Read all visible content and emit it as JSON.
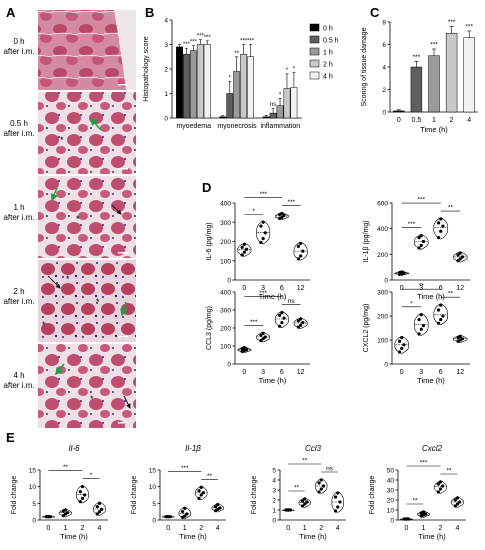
{
  "panels": {
    "A": {
      "letter": "A",
      "rows": [
        {
          "l1": "0 h",
          "l2": "after i.m."
        },
        {
          "l1": "0.5 h",
          "l2": "after i.m."
        },
        {
          "l1": "1 h",
          "l2": "after i.m."
        },
        {
          "l1": "2 h",
          "l2": "after i.m."
        },
        {
          "l1": "4 h",
          "l2": "after i.m."
        }
      ]
    },
    "B": {
      "letter": "B"
    },
    "C": {
      "letter": "C"
    },
    "D": {
      "letter": "D"
    },
    "E": {
      "letter": "E"
    }
  },
  "chart_data": [
    {
      "id": "B",
      "type": "bar",
      "categories": [
        "myoedema",
        "myonecrosis",
        "inflammation"
      ],
      "ylabel": "Histopathology score",
      "ylim": [
        0,
        4
      ],
      "yticks": [
        0,
        1,
        2,
        3,
        4
      ],
      "series": [
        {
          "name": "0 h",
          "color": "#000000",
          "values": [
            2.9,
            0.05,
            0.05
          ]
        },
        {
          "name": "0.5 h",
          "color": "#5f5f5f",
          "values": [
            2.6,
            1.0,
            0.2
          ]
        },
        {
          "name": "1 h",
          "color": "#9a9a9a",
          "values": [
            2.75,
            1.9,
            0.5
          ]
        },
        {
          "name": "2 h",
          "color": "#c8c8c8",
          "values": [
            3.0,
            2.6,
            1.2
          ]
        },
        {
          "name": "4 h",
          "color": "#f2f2f2",
          "values": [
            3.0,
            2.5,
            1.25
          ]
        }
      ],
      "errors": [
        [
          0.1,
          0.05,
          0.05
        ],
        [
          0.25,
          0.5,
          0.2
        ],
        [
          0.2,
          0.6,
          0.3
        ],
        [
          0.2,
          0.4,
          0.6
        ],
        [
          0.15,
          0.5,
          0.6
        ]
      ],
      "sig": [
        [
          "***",
          "***",
          "***",
          "***"
        ],
        [
          "*",
          "**",
          "***",
          "***"
        ],
        [
          "ns",
          "*",
          "*",
          "*"
        ]
      ],
      "legend": [
        "0 h",
        "0.5 h",
        "1 h",
        "2 h",
        "4 h"
      ]
    },
    {
      "id": "C",
      "type": "bar",
      "categories": [
        "0",
        "0.5",
        "1",
        "2",
        "4"
      ],
      "xlabel": "Time (h)",
      "ylabel": "Scoring of tissue damage",
      "ylim": [
        0,
        8
      ],
      "yticks": [
        0,
        2,
        4,
        6,
        8
      ],
      "values": [
        0.1,
        4.0,
        5.0,
        7.0,
        6.6
      ],
      "errors": [
        0.1,
        0.5,
        0.6,
        0.6,
        0.6
      ],
      "colors": [
        "#000000",
        "#5f5f5f",
        "#9a9a9a",
        "#c8c8c8",
        "#f2f2f2"
      ],
      "sig": [
        "",
        "***",
        "***",
        "***",
        "***"
      ]
    },
    {
      "id": "D1",
      "type": "scatter",
      "categories": [
        "0",
        "3",
        "6",
        "12"
      ],
      "xlabel": "Time (h)",
      "ylabel": "IL-6 (pg/mg)",
      "ylim": [
        0,
        400
      ],
      "yticks": [
        0,
        100,
        200,
        300,
        400
      ],
      "points": [
        [
          130,
          145,
          160,
          170,
          185
        ],
        [
          195,
          215,
          245,
          280,
          300
        ],
        [
          320,
          325,
          335,
          340,
          345
        ],
        [
          110,
          125,
          150,
          175,
          190
        ]
      ],
      "brackets": [
        [
          0,
          1,
          "*"
        ],
        [
          0,
          2,
          "***"
        ],
        [
          2,
          3,
          "***"
        ]
      ]
    },
    {
      "id": "D2",
      "type": "scatter",
      "categories": [
        "0",
        "3",
        "6",
        "12"
      ],
      "xlabel": "Time (h)",
      "ylabel": "IL-1β (pg/mg)",
      "ylim": [
        0,
        600
      ],
      "yticks": [
        0,
        200,
        400,
        600
      ],
      "points": [
        [
          45,
          50,
          55,
          58,
          62
        ],
        [
          250,
          270,
          300,
          330,
          345
        ],
        [
          330,
          380,
          420,
          445,
          475
        ],
        [
          150,
          165,
          180,
          195,
          210
        ]
      ],
      "brackets": [
        [
          0,
          1,
          "***"
        ],
        [
          0,
          2,
          "***"
        ],
        [
          2,
          3,
          "**"
        ]
      ]
    },
    {
      "id": "D3",
      "type": "scatter",
      "categories": [
        "0",
        "3",
        "6",
        "12"
      ],
      "xlabel": "Time (h)",
      "ylabel": "CCL3 (pg/mg)",
      "ylim": [
        0,
        400
      ],
      "yticks": [
        0,
        100,
        200,
        300,
        400
      ],
      "points": [
        [
          70,
          75,
          80,
          85,
          90
        ],
        [
          130,
          140,
          150,
          160,
          170
        ],
        [
          210,
          230,
          255,
          270,
          285
        ],
        [
          205,
          215,
          230,
          240,
          250
        ]
      ],
      "brackets": [
        [
          0,
          1,
          "***"
        ],
        [
          0,
          2,
          "***"
        ],
        [
          2,
          3,
          "ns"
        ]
      ]
    },
    {
      "id": "D4",
      "type": "scatter",
      "categories": [
        "0",
        "3",
        "6",
        "12"
      ],
      "xlabel": "Time (h)",
      "ylabel": "CXCL2 (pg/mg)",
      "ylim": [
        0,
        300
      ],
      "yticks": [
        0,
        100,
        200,
        300
      ],
      "points": [
        [
          50,
          65,
          80,
          95,
          110
        ],
        [
          125,
          145,
          160,
          185,
          205
        ],
        [
          170,
          185,
          200,
          225,
          245
        ],
        [
          95,
          100,
          105,
          110,
          115
        ]
      ],
      "brackets": [
        [
          0,
          1,
          "*"
        ],
        [
          0,
          2,
          "**"
        ],
        [
          2,
          3,
          "**"
        ]
      ]
    },
    {
      "id": "E1",
      "type": "scatter",
      "title": "Il-6",
      "categories": [
        "0",
        "1",
        "2",
        "4"
      ],
      "xlabel": "Time (h)",
      "ylabel": "Fold change",
      "ylim": [
        0,
        15
      ],
      "yticks": [
        0,
        5,
        10,
        15
      ],
      "points": [
        [
          1,
          1,
          1,
          1,
          1
        ],
        [
          1.3,
          1.8,
          2.2,
          2.7,
          3
        ],
        [
          5.5,
          6.5,
          7.5,
          8.5,
          10
        ],
        [
          1.8,
          2.5,
          3.2,
          4,
          5
        ]
      ],
      "brackets": [
        [
          0,
          2,
          "**"
        ],
        [
          2,
          3,
          "*"
        ]
      ]
    },
    {
      "id": "E2",
      "type": "scatter",
      "title": "Il-1β",
      "categories": [
        "0",
        "1",
        "2",
        "4"
      ],
      "xlabel": "Time (h)",
      "ylabel": "Fold change",
      "ylim": [
        0,
        15
      ],
      "yticks": [
        0,
        5,
        10,
        15
      ],
      "points": [
        [
          1,
          1,
          1,
          1,
          1
        ],
        [
          0.8,
          1.2,
          1.8,
          2.5,
          3.5
        ],
        [
          6.5,
          7.5,
          8.2,
          8.8,
          9.8
        ],
        [
          2.8,
          3.2,
          3.6,
          4.0,
          4.6
        ]
      ],
      "brackets": [
        [
          0,
          2,
          "***"
        ],
        [
          2,
          3,
          "**"
        ]
      ]
    },
    {
      "id": "E3",
      "type": "scatter",
      "title": "Ccl3",
      "categories": [
        "0",
        "1",
        "2",
        "4"
      ],
      "xlabel": "Time (h)",
      "ylabel": "Fold change",
      "ylim": [
        0,
        5
      ],
      "yticks": [
        0,
        1,
        2,
        3,
        4,
        5
      ],
      "points": [
        [
          1,
          1,
          1,
          1,
          1
        ],
        [
          1.4,
          1.6,
          1.8,
          1.9,
          2.1
        ],
        [
          2.8,
          3.1,
          3.4,
          3.7,
          4.0
        ],
        [
          0.9,
          1.3,
          1.8,
          2.3,
          2.7
        ]
      ],
      "brackets": [
        [
          0,
          1,
          "**"
        ],
        [
          0,
          2,
          "**"
        ],
        [
          2,
          3,
          "ns"
        ]
      ]
    },
    {
      "id": "E4",
      "type": "scatter",
      "title": "Cxcl2",
      "categories": [
        "0",
        "1",
        "2",
        "4"
      ],
      "xlabel": "Time (h)",
      "ylabel": "Fold change",
      "ylim": [
        0,
        50
      ],
      "yticks": [
        0,
        10,
        20,
        30,
        40,
        50
      ],
      "points": [
        [
          1,
          1,
          1,
          1,
          1
        ],
        [
          4,
          5,
          6,
          7,
          8
        ],
        [
          28,
          31,
          34,
          36,
          38
        ],
        [
          14,
          16,
          18,
          20,
          22
        ]
      ],
      "brackets": [
        [
          0,
          1,
          "**"
        ],
        [
          0,
          2,
          "***"
        ],
        [
          2,
          3,
          "**"
        ]
      ]
    }
  ]
}
